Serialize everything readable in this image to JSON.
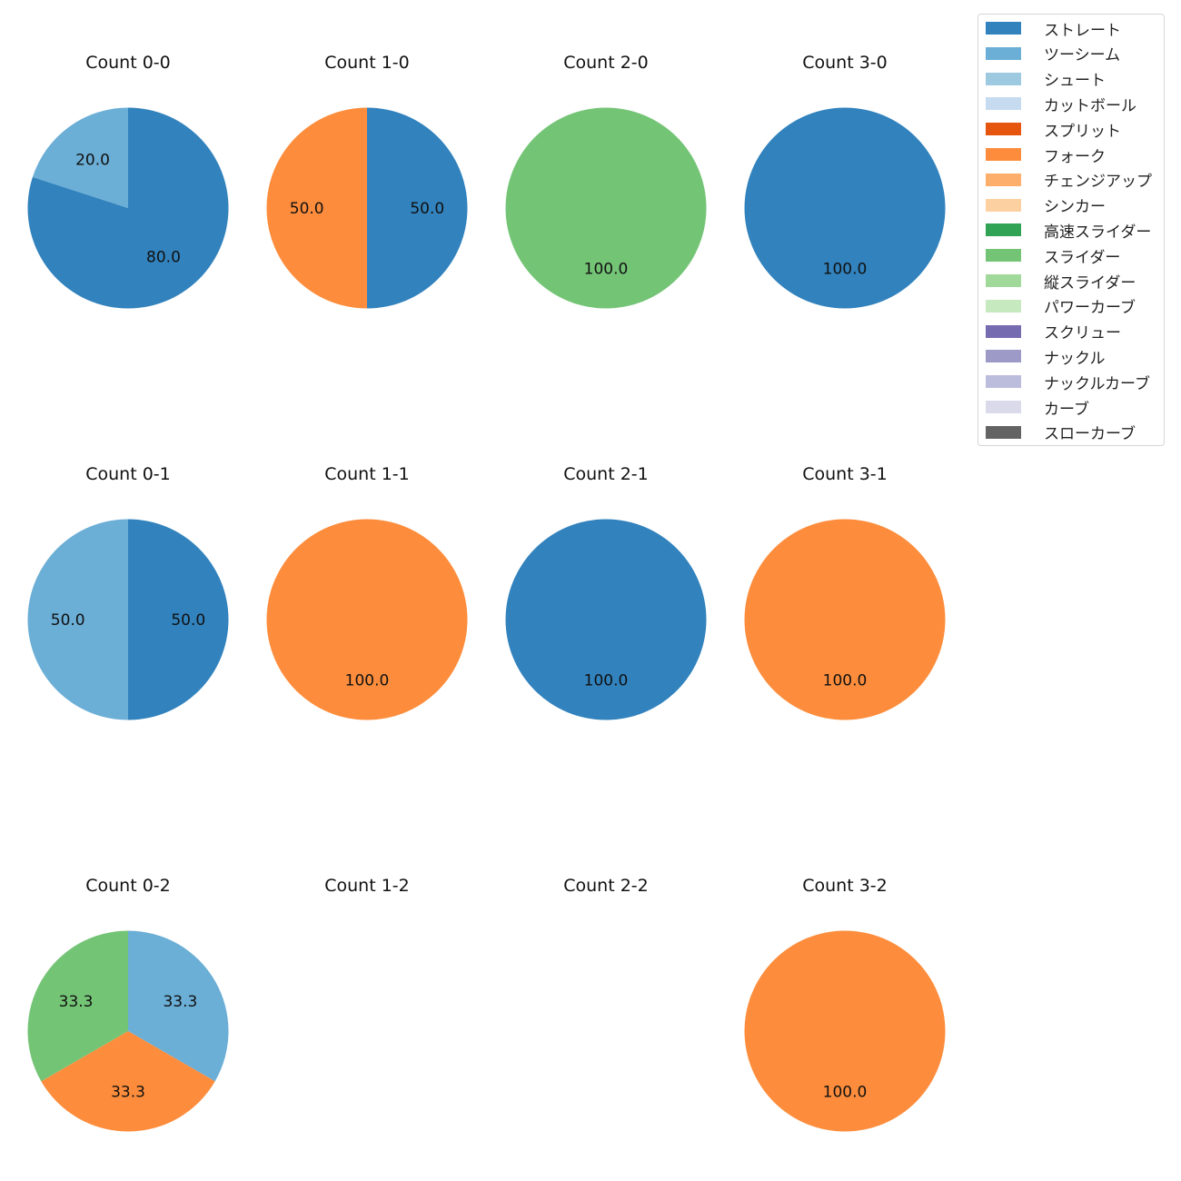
{
  "chart_data": {
    "type": "pie",
    "start_angle": 90,
    "direction": "clockwise",
    "legend": {
      "placement": "top-right",
      "entries": [
        {
          "name": "ストレート",
          "color": "#3182bd"
        },
        {
          "name": "ツーシーム",
          "color": "#6baed6"
        },
        {
          "name": "シュート",
          "color": "#9ecae1"
        },
        {
          "name": "カットボール",
          "color": "#c6dbef"
        },
        {
          "name": "スプリット",
          "color": "#e6550d"
        },
        {
          "name": "フォーク",
          "color": "#fd8d3c"
        },
        {
          "name": "チェンジアップ",
          "color": "#fdae6b"
        },
        {
          "name": "シンカー",
          "color": "#fdd0a2"
        },
        {
          "name": "高速スライダー",
          "color": "#31a354"
        },
        {
          "name": "スライダー",
          "color": "#74c476"
        },
        {
          "name": "縦スライダー",
          "color": "#a1d99b"
        },
        {
          "name": "パワーカーブ",
          "color": "#c7e9c0"
        },
        {
          "name": "スクリュー",
          "color": "#756bb1"
        },
        {
          "name": "ナックル",
          "color": "#9e9ac8"
        },
        {
          "name": "ナックルカーブ",
          "color": "#bcbddc"
        },
        {
          "name": "カーブ",
          "color": "#dadaeb"
        },
        {
          "name": "スローカーブ",
          "color": "#636363"
        }
      ]
    },
    "pies": [
      {
        "title": "Count 0-0",
        "row": 0,
        "col": 0,
        "slices": [
          {
            "name": "ストレート",
            "value": 80.0,
            "label": "80.0"
          },
          {
            "name": "ツーシーム",
            "value": 20.0,
            "label": "20.0"
          }
        ]
      },
      {
        "title": "Count 1-0",
        "row": 0,
        "col": 1,
        "slices": [
          {
            "name": "ストレート",
            "value": 50.0,
            "label": "50.0"
          },
          {
            "name": "フォーク",
            "value": 50.0,
            "label": "50.0"
          }
        ]
      },
      {
        "title": "Count 2-0",
        "row": 0,
        "col": 2,
        "slices": [
          {
            "name": "スライダー",
            "value": 100.0,
            "label": "100.0"
          }
        ]
      },
      {
        "title": "Count 3-0",
        "row": 0,
        "col": 3,
        "slices": [
          {
            "name": "ストレート",
            "value": 100.0,
            "label": "100.0"
          }
        ]
      },
      {
        "title": "Count 0-1",
        "row": 1,
        "col": 0,
        "slices": [
          {
            "name": "ストレート",
            "value": 50.0,
            "label": "50.0"
          },
          {
            "name": "ツーシーム",
            "value": 50.0,
            "label": "50.0"
          }
        ]
      },
      {
        "title": "Count 1-1",
        "row": 1,
        "col": 1,
        "slices": [
          {
            "name": "フォーク",
            "value": 100.0,
            "label": "100.0"
          }
        ]
      },
      {
        "title": "Count 2-1",
        "row": 1,
        "col": 2,
        "slices": [
          {
            "name": "ストレート",
            "value": 100.0,
            "label": "100.0"
          }
        ]
      },
      {
        "title": "Count 3-1",
        "row": 1,
        "col": 3,
        "slices": [
          {
            "name": "フォーク",
            "value": 100.0,
            "label": "100.0"
          }
        ]
      },
      {
        "title": "Count 0-2",
        "row": 2,
        "col": 0,
        "slices": [
          {
            "name": "ツーシーム",
            "value": 33.3,
            "label": "33.3"
          },
          {
            "name": "フォーク",
            "value": 33.3,
            "label": "33.3"
          },
          {
            "name": "スライダー",
            "value": 33.3,
            "label": "33.3"
          }
        ]
      },
      {
        "title": "Count 1-2",
        "row": 2,
        "col": 1,
        "slices": []
      },
      {
        "title": "Count 2-2",
        "row": 2,
        "col": 2,
        "slices": []
      },
      {
        "title": "Count 3-2",
        "row": 2,
        "col": 3,
        "slices": [
          {
            "name": "フォーク",
            "value": 100.0,
            "label": "100.0"
          }
        ]
      }
    ]
  }
}
